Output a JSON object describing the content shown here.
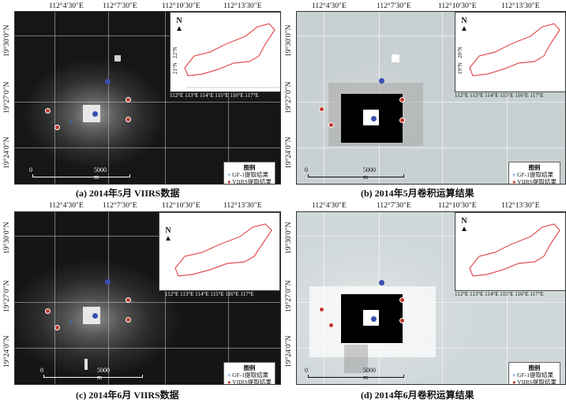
{
  "panels": [
    {
      "id": "a",
      "caption": "(a) 2014年5月 VIIRS数据",
      "style": "dark"
    },
    {
      "id": "b",
      "caption": "(b) 2014年5月卷积运算结果",
      "style": "light"
    },
    {
      "id": "c",
      "caption": "(c) 2014年6月 VIIRS数据",
      "style": "dark"
    },
    {
      "id": "d",
      "caption": "(d) 2014年6月卷积运算结果",
      "style": "light"
    }
  ],
  "axes": {
    "x_ticks": [
      "112°4′30″E",
      "112°7′30″E",
      "112°10′30″E",
      "112°13′30″E"
    ],
    "y_ticks": [
      "19°30′0″N",
      "19°27′0″N",
      "19°24′0″N"
    ]
  },
  "inset": {
    "x_ticks": [
      "112°E",
      "113°E",
      "114°E",
      "115°E",
      "116°E",
      "117°E"
    ],
    "y_ticks": [
      "22°N",
      "21°N",
      "20°N",
      "19°N"
    ],
    "north_label": "N"
  },
  "scale_bar": {
    "start": "0",
    "end": "5000 m"
  },
  "legend": {
    "title": "图例",
    "items": [
      {
        "label": "GF-1提取结果",
        "symbol": "cross",
        "color": "#2f6fd8"
      },
      {
        "label": "VIIRS提取结果",
        "symbol": "dot",
        "color": "#c0392b"
      }
    ]
  }
}
